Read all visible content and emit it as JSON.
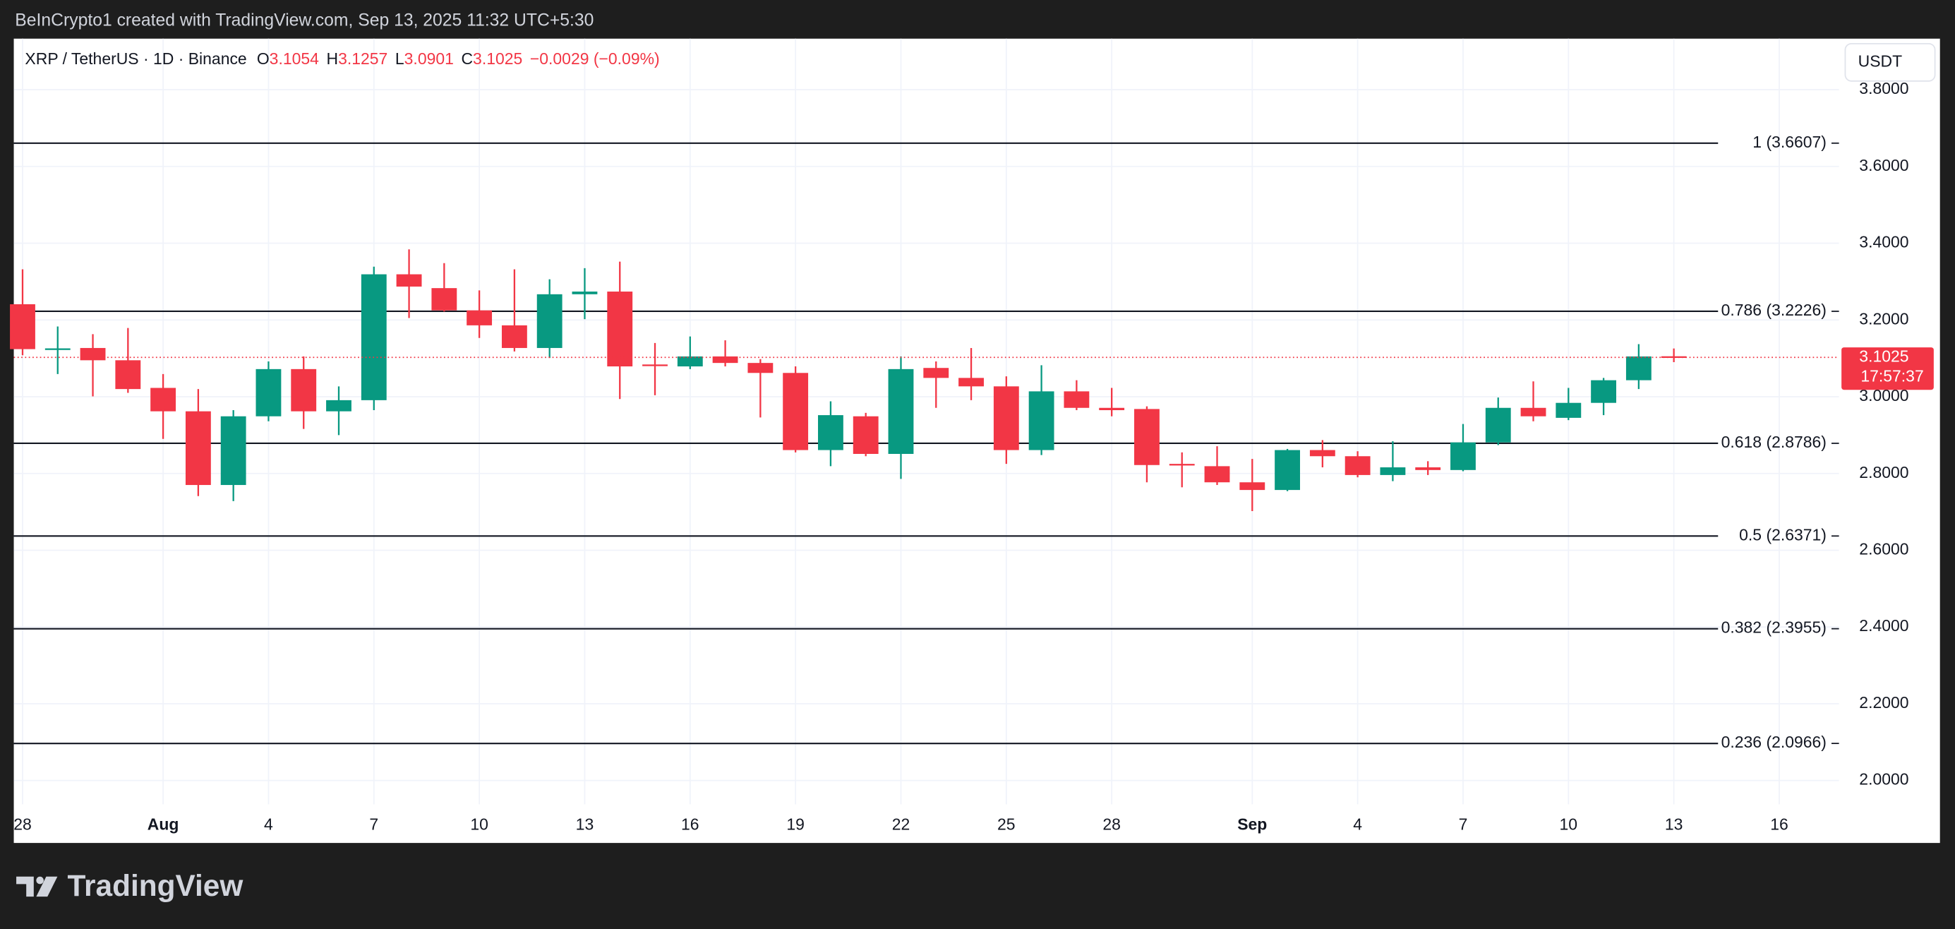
{
  "header": {
    "credit": "BeInCrypto1 created with TradingView.com, Sep 13, 2025 11:32 UTC+5:30",
    "logo": "TradingView"
  },
  "chart_data": {
    "type": "candlestick",
    "symbol": "XRP / TetherUS · 1D · Binance",
    "ohlc_labels": [
      "O",
      "H",
      "L",
      "C"
    ],
    "change": "−0.0029 (−0.09%)",
    "currency": "USDT",
    "countdown": "17:57:37",
    "up_color": "#089981",
    "down_color": "#f23645",
    "grid": true,
    "ylim": [
      1.938,
      3.933
    ],
    "yticks": [
      {
        "value": 2.0,
        "label": "2.0000"
      },
      {
        "value": 2.2,
        "label": "2.2000"
      },
      {
        "value": 2.4,
        "label": "2.4000"
      },
      {
        "value": 2.6,
        "label": "2.6000"
      },
      {
        "value": 2.8,
        "label": "2.8000"
      },
      {
        "value": 3.0,
        "label": "3.0000"
      },
      {
        "value": 3.2,
        "label": "3.2000"
      },
      {
        "value": 3.4,
        "label": "3.4000"
      },
      {
        "value": 3.6,
        "label": "3.6000"
      },
      {
        "value": 3.8,
        "label": "3.8000"
      }
    ],
    "xlim": [
      -0.25,
      51.7
    ],
    "xticks": [
      {
        "value": 0,
        "label": "28"
      },
      {
        "value": 4,
        "label": "Aug"
      },
      {
        "value": 7,
        "label": "4"
      },
      {
        "value": 10,
        "label": "7"
      },
      {
        "value": 13,
        "label": "10"
      },
      {
        "value": 16,
        "label": "13"
      },
      {
        "value": 19,
        "label": "16"
      },
      {
        "value": 22,
        "label": "19"
      },
      {
        "value": 25,
        "label": "22"
      },
      {
        "value": 28,
        "label": "25"
      },
      {
        "value": 31,
        "label": "28"
      },
      {
        "value": 35,
        "label": "Sep"
      },
      {
        "value": 38,
        "label": "4"
      },
      {
        "value": 41,
        "label": "7"
      },
      {
        "value": 44,
        "label": "10"
      },
      {
        "value": 47,
        "label": "13"
      },
      {
        "value": 50,
        "label": "16"
      }
    ],
    "open": [
      3.241,
      3.122,
      3.127,
      3.095,
      3.023,
      2.962,
      2.77,
      2.949,
      3.072,
      2.962,
      2.991,
      3.319,
      3.283,
      3.225,
      3.186,
      3.127,
      3.267,
      3.274,
      3.084,
      3.079,
      3.105,
      3.088,
      3.062,
      2.861,
      2.949,
      2.851,
      3.075,
      3.049,
      3.027,
      2.861,
      3.014,
      2.971,
      2.968,
      2.825,
      2.819,
      2.777,
      2.757,
      2.861,
      2.845,
      2.796,
      2.816,
      2.809,
      2.881,
      2.971,
      2.945,
      2.984,
      3.043,
      3.1054
    ],
    "high": [
      3.332,
      3.183,
      3.163,
      3.179,
      3.059,
      3.02,
      2.965,
      3.092,
      3.105,
      3.027,
      3.339,
      3.384,
      3.348,
      3.277,
      3.332,
      3.306,
      3.335,
      3.352,
      3.14,
      3.157,
      3.147,
      3.098,
      3.079,
      2.988,
      2.958,
      3.105,
      3.092,
      3.127,
      3.053,
      3.082,
      3.043,
      3.023,
      2.975,
      2.855,
      2.871,
      2.838,
      2.864,
      2.887,
      2.858,
      2.884,
      2.832,
      2.929,
      2.998,
      3.04,
      3.023,
      3.049,
      3.137,
      3.1257
    ],
    "low": [
      3.108,
      3.059,
      3.001,
      3.01,
      2.89,
      2.741,
      2.728,
      2.936,
      2.916,
      2.9,
      2.965,
      3.205,
      3.222,
      3.153,
      3.118,
      3.101,
      3.202,
      2.994,
      3.004,
      3.072,
      3.079,
      2.946,
      2.855,
      2.819,
      2.845,
      2.786,
      2.971,
      2.991,
      2.825,
      2.848,
      2.965,
      2.949,
      2.777,
      2.764,
      2.77,
      2.702,
      2.754,
      2.816,
      2.79,
      2.78,
      2.796,
      2.806,
      2.874,
      2.936,
      2.939,
      2.952,
      3.02,
      3.0901
    ],
    "close": [
      3.124,
      3.126,
      3.095,
      3.02,
      2.962,
      2.77,
      2.949,
      3.072,
      2.962,
      2.991,
      3.319,
      3.287,
      3.225,
      3.186,
      3.127,
      3.267,
      3.274,
      3.079,
      3.08,
      3.105,
      3.088,
      3.062,
      2.861,
      2.952,
      2.851,
      3.072,
      3.049,
      3.027,
      2.861,
      3.014,
      2.971,
      2.965,
      2.822,
      2.822,
      2.777,
      2.757,
      2.861,
      2.845,
      2.796,
      2.816,
      2.809,
      2.881,
      2.971,
      2.949,
      2.984,
      3.043,
      3.105,
      3.1025
    ],
    "levels": [
      {
        "label": "1 (3.6607)",
        "value": 3.6607
      },
      {
        "label": "0.786 (3.2226)",
        "value": 3.2226
      },
      {
        "label": "0.618 (2.8786)",
        "value": 2.8786
      },
      {
        "label": "0.5 (2.6371)",
        "value": 2.6371
      },
      {
        "label": "0.382 (2.3955)",
        "value": 2.3955
      },
      {
        "label": "0.236 (2.0966)",
        "value": 2.0966
      }
    ]
  }
}
